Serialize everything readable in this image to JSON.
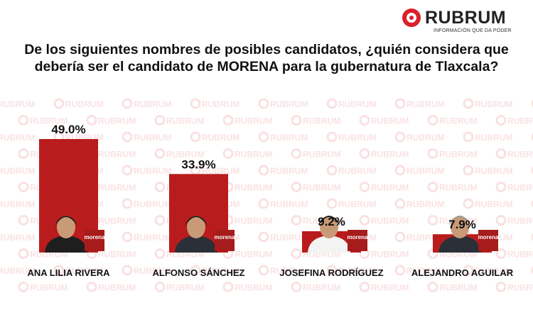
{
  "brand": {
    "name": "RUBRUM",
    "tagline": "INFORMACIÓN QUE DA PODER",
    "accent_color": "#d9202b"
  },
  "question": "De los siguientes nombres de posibles candidatos, ¿quién considera que debería ser el candidato de MORENA para la gubernatura de Tlaxcala?",
  "watermark_text": "RUBRUM",
  "party_badge": "morena",
  "colors": {
    "bar": "#b91c1c",
    "badge": "#a61b1b",
    "text": "#111111"
  },
  "chart_data": {
    "type": "bar",
    "title": "De los siguientes nombres de posibles candidatos, ¿quién considera que debería ser el candidato de MORENA para la gubernatura de Tlaxcala?",
    "categories": [
      "ANA LILIA RIVERA",
      "ALFONSO SÁNCHEZ",
      "JOSEFINA RODRÍGUEZ",
      "ALEJANDRO AGUILAR"
    ],
    "values": [
      49.0,
      33.9,
      9.2,
      7.9
    ],
    "value_labels": [
      "49.0%",
      "33.9%",
      "9.2%",
      "7.9%"
    ],
    "unit": "%",
    "xlabel": "",
    "ylabel": "",
    "ylim": [
      0,
      49.0
    ],
    "grid": false,
    "legend": "none"
  }
}
